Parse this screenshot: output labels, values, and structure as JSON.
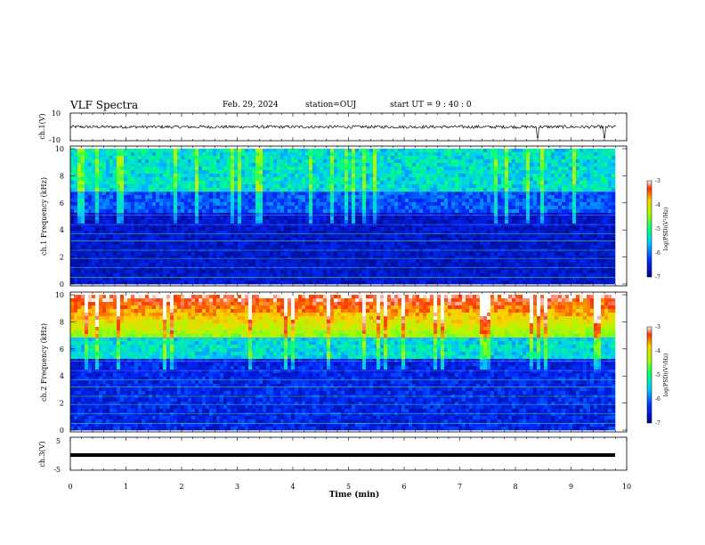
{
  "header": {
    "title": "VLF Spectra",
    "date": "Feb. 29, 2024",
    "station": "station=OUJ",
    "start": "start  UT =   9 : 40 : 0"
  },
  "chart_data": [
    {
      "type": "line",
      "panel": "ch1-waveform",
      "ylabel": "ch.1(V)",
      "ylim": [
        -10,
        10
      ],
      "yticks": [
        "10",
        "-10"
      ],
      "xlim": [
        0,
        10
      ],
      "series": [
        {
          "values_note_free": true,
          "baseline": 0,
          "spikes_at_min": [
            8.4,
            9.6
          ]
        }
      ]
    },
    {
      "type": "heatmap",
      "panel": "ch1-spectrogram",
      "ylabel": "ch.1 Frequency (kHz)",
      "ylim": [
        0,
        10
      ],
      "yticks": [
        "0",
        "2",
        "4",
        "6",
        "8",
        "10"
      ],
      "xlim": [
        0,
        10
      ],
      "colorbar": {
        "label": "log(PSD)(V²/Hz)",
        "range": [
          -7,
          -3
        ],
        "ticks": [
          "-3",
          "-4",
          "-5",
          "-6",
          "-7"
        ]
      }
    },
    {
      "type": "heatmap",
      "panel": "ch2-spectrogram",
      "ylabel": "ch.2 Frequency (kHz)",
      "ylim": [
        0,
        10
      ],
      "yticks": [
        "0",
        "2",
        "4",
        "6",
        "8",
        "10"
      ],
      "xlim": [
        0,
        10
      ],
      "colorbar": {
        "label": "log(PSD)(V²/Hz)",
        "range": [
          -7,
          -3
        ],
        "ticks": [
          "-3",
          "-4",
          "-5",
          "-6",
          "-7"
        ]
      }
    },
    {
      "type": "line",
      "panel": "ch3-waveform",
      "ylabel": "ch.3(V)",
      "ylim": [
        -5,
        5
      ],
      "yticks": [
        "5",
        "-5"
      ],
      "xlim": [
        0,
        10
      ],
      "series": [
        {
          "constant_value": -1.5
        }
      ]
    }
  ],
  "xaxis": {
    "label": "Time (min)",
    "ticks": [
      "0",
      "1",
      "2",
      "3",
      "4",
      "5",
      "6",
      "7",
      "8",
      "9",
      "10"
    ]
  },
  "colors": {
    "background_low": "#000080",
    "mid": "#00d0ff",
    "high": "#ff0000"
  }
}
